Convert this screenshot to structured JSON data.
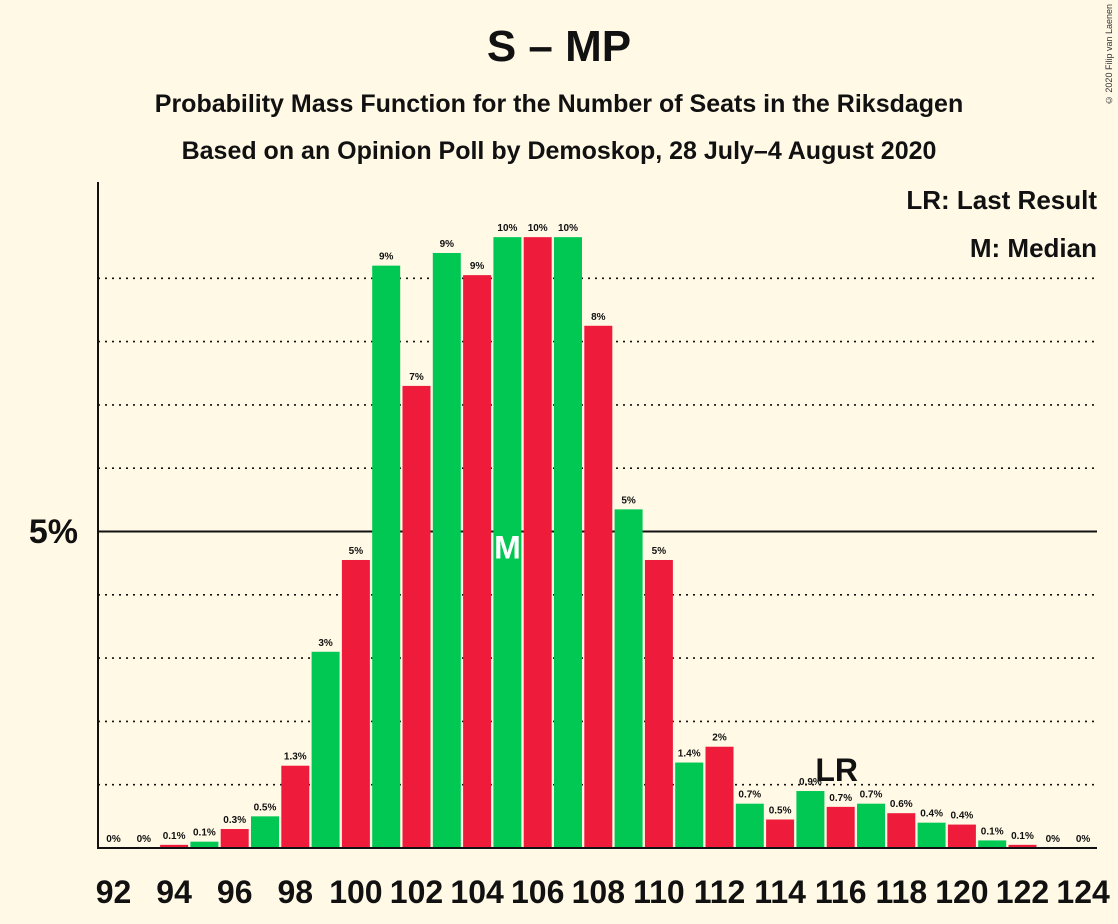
{
  "header": {
    "title": "S – MP",
    "subtitle": "Probability Mass Function for the Number of Seats in the Riksdagen",
    "subtitle2": "Based on an Opinion Poll by Demoskop, 28 July–4 August 2020",
    "credit": "© 2020 Filip van Laenen"
  },
  "legend": {
    "lr": "LR: Last Result",
    "m": "M: Median"
  },
  "colors": {
    "green": "#00c853",
    "red": "#ee1c3a",
    "background": "#fff9e6"
  },
  "chart_data": {
    "type": "bar",
    "x": [
      92,
      93,
      94,
      95,
      96,
      97,
      98,
      99,
      100,
      101,
      102,
      103,
      104,
      105,
      106,
      107,
      108,
      109,
      110,
      111,
      112,
      113,
      114,
      115,
      116,
      117,
      118,
      119,
      120,
      121,
      122,
      123,
      124
    ],
    "values": [
      0,
      0,
      0.05,
      0.1,
      0.3,
      0.5,
      1.3,
      3.1,
      4.55,
      9.2,
      7.3,
      9.4,
      9.05,
      9.65,
      9.65,
      9.65,
      8.25,
      5.35,
      4.55,
      1.35,
      1.6,
      0.7,
      0.45,
      0.9,
      0.65,
      0.7,
      0.55,
      0.4,
      0.37,
      0.12,
      0.05,
      0,
      0
    ],
    "labels": [
      "0%",
      "0%",
      "0.1%",
      "0.1%",
      "0.3%",
      "0.5%",
      "1.3%",
      "3%",
      "5%",
      "9%",
      "7%",
      "9%",
      "9%",
      "10%",
      "10%",
      "10%",
      "8%",
      "5%",
      "5%",
      "1.4%",
      "2%",
      "0.7%",
      "0.5%",
      "0.9%",
      "0.7%",
      "0.7%",
      "0.6%",
      "0.4%",
      "0.4%",
      "0.1%",
      "0.1%",
      "0%",
      "0%"
    ],
    "colors": [
      "green",
      "green",
      "red",
      "green",
      "red",
      "green",
      "red",
      "green",
      "red",
      "green",
      "red",
      "green",
      "red",
      "green",
      "red",
      "green",
      "red",
      "green",
      "red",
      "green",
      "red",
      "green",
      "red",
      "green",
      "red",
      "green",
      "red",
      "green",
      "red",
      "green",
      "red",
      "green",
      "red"
    ],
    "x_tick_labels": [
      "92",
      "94",
      "96",
      "98",
      "100",
      "102",
      "104",
      "106",
      "108",
      "110",
      "112",
      "114",
      "116",
      "118",
      "120",
      "122",
      "124"
    ],
    "y_tick_label": "5%",
    "y_tick_value": 5,
    "ylim": [
      0,
      10.5
    ],
    "median_x": 105,
    "median_label": "M",
    "last_result_x": 116,
    "last_result_label": "LR",
    "legend_position": "top-right"
  }
}
